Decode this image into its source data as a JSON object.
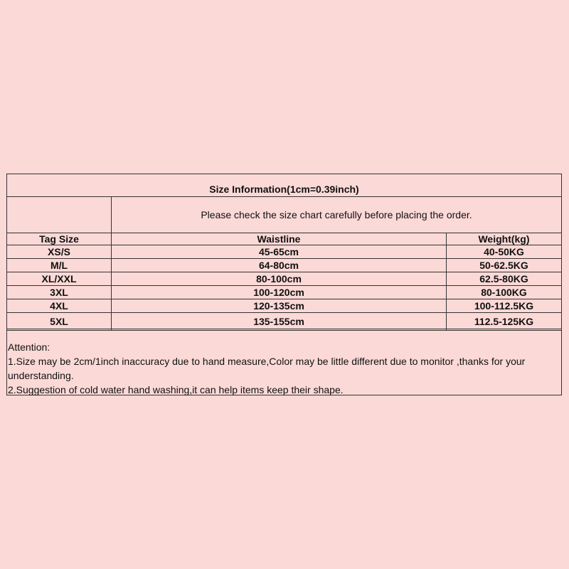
{
  "title": "Size Information(1cm=0.39inch)",
  "note": "Please check the size chart carefully before placing the order.",
  "columns": [
    "Tag Size",
    "Waistline",
    "Weight(kg)"
  ],
  "rows": [
    [
      "XS/S",
      "45-65cm",
      "40-50KG"
    ],
    [
      "M/L",
      "64-80cm",
      "50-62.5KG"
    ],
    [
      "XL/XXL",
      "80-100cm",
      "62.5-80KG"
    ],
    [
      "3XL",
      "100-120cm",
      "80-100KG"
    ],
    [
      "4XL",
      "120-135cm",
      "100-112.5KG"
    ],
    [
      "5XL",
      "135-155cm",
      "112.5-125KG"
    ]
  ],
  "attention": {
    "heading": "Attention:",
    "lines": [
      "1.Size may be 2cm/1inch inaccuracy due to hand measure,Color may be little different due to monitor ,thanks for your understanding.",
      "2.Suggestion of cold water hand washing,it can help items keep their shape."
    ]
  }
}
